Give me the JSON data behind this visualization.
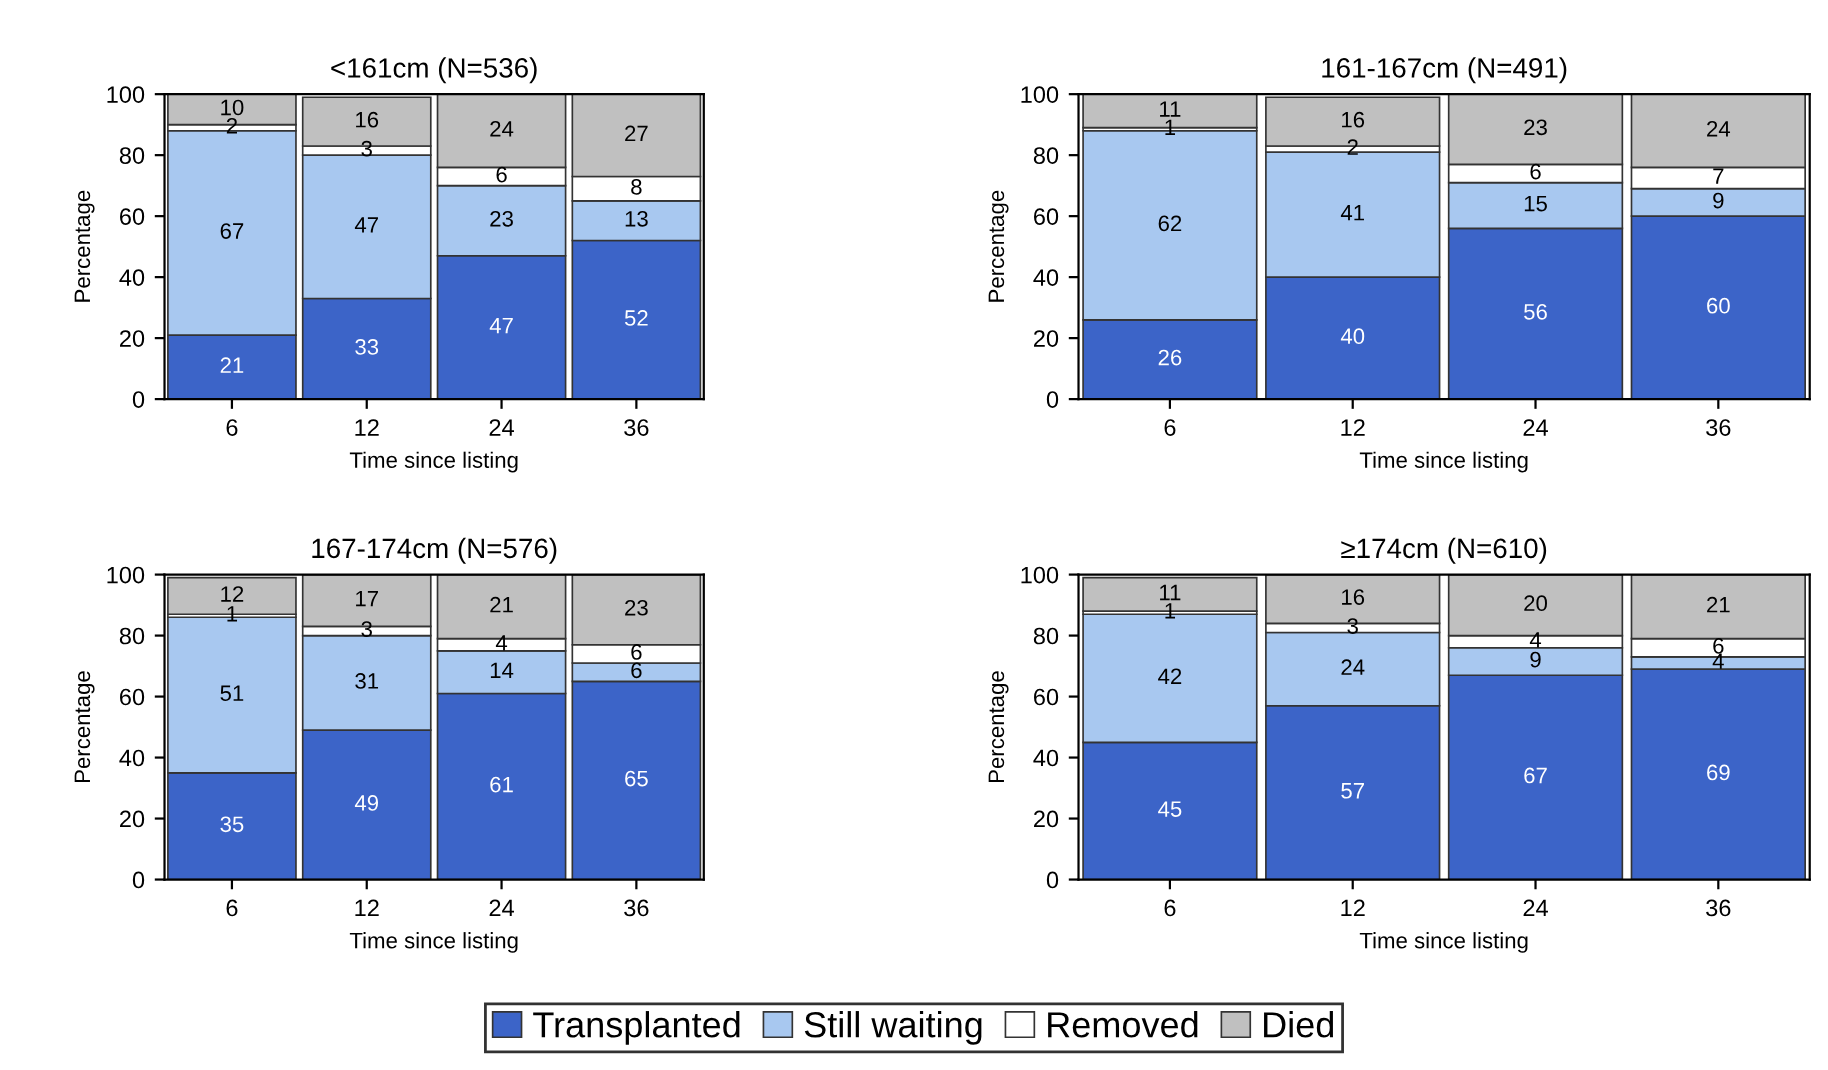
{
  "chart_data": [
    {
      "type": "bar",
      "title": "<161cm (N=536)",
      "xlabel": "Time since listing",
      "ylabel": "Percentage",
      "categories": [
        "6",
        "12",
        "24",
        "36"
      ],
      "stacked": true,
      "data_labels": true,
      "ylim": [
        0,
        100
      ],
      "yticks": [
        0,
        20,
        40,
        60,
        80,
        100
      ],
      "grid": false,
      "legend": "bottom",
      "series": [
        {
          "name": "Transplanted",
          "color": "#3c64c8",
          "values": [
            21,
            33,
            47,
            52
          ]
        },
        {
          "name": "Still waiting",
          "color": "#a8c8f0",
          "values": [
            67,
            47,
            23,
            13
          ]
        },
        {
          "name": "Removed",
          "color": "#ffffff",
          "values": [
            2,
            3,
            6,
            8
          ]
        },
        {
          "name": "Died",
          "color": "#c0c0c0",
          "values": [
            10,
            16,
            24,
            27
          ]
        }
      ]
    },
    {
      "type": "bar",
      "title": "161-167cm (N=491)",
      "xlabel": "Time since listing",
      "ylabel": "Percentage",
      "categories": [
        "6",
        "12",
        "24",
        "36"
      ],
      "stacked": true,
      "data_labels": true,
      "ylim": [
        0,
        100
      ],
      "yticks": [
        0,
        20,
        40,
        60,
        80,
        100
      ],
      "grid": false,
      "series": [
        {
          "color": "#3c64c8",
          "values": [
            26,
            40,
            56,
            60
          ]
        },
        {
          "color": "#a8c8f0",
          "values": [
            62,
            41,
            15,
            9
          ]
        },
        {
          "color": "#ffffff",
          "values": [
            1,
            2,
            6,
            7
          ]
        },
        {
          "color": "#c0c0c0",
          "values": [
            11,
            16,
            23,
            24
          ]
        }
      ]
    },
    {
      "type": "bar",
      "title": "167-174cm (N=576)",
      "xlabel": "Time since listing",
      "ylabel": "Percentage",
      "categories": [
        "6",
        "12",
        "24",
        "36"
      ],
      "stacked": true,
      "data_labels": true,
      "ylim": [
        0,
        100
      ],
      "yticks": [
        0,
        20,
        40,
        60,
        80,
        100
      ],
      "grid": false,
      "series": [
        {
          "color": "#3c64c8",
          "values": [
            35,
            49,
            61,
            65
          ]
        },
        {
          "color": "#a8c8f0",
          "values": [
            51,
            31,
            14,
            6
          ]
        },
        {
          "color": "#ffffff",
          "values": [
            1,
            3,
            4,
            6
          ]
        },
        {
          "color": "#c0c0c0",
          "values": [
            12,
            17,
            21,
            23
          ]
        }
      ]
    },
    {
      "type": "bar",
      "title": "≥174cm (N=610)",
      "xlabel": "Time since listing",
      "ylabel": "Percentage",
      "categories": [
        "6",
        "12",
        "24",
        "36"
      ],
      "stacked": true,
      "data_labels": true,
      "ylim": [
        0,
        100
      ],
      "yticks": [
        0,
        20,
        40,
        60,
        80,
        100
      ],
      "grid": false,
      "series": [
        {
          "color": "#3c64c8",
          "values": [
            45,
            57,
            67,
            69
          ]
        },
        {
          "color": "#a8c8f0",
          "values": [
            42,
            24,
            9,
            4
          ]
        },
        {
          "color": "#ffffff",
          "values": [
            1,
            3,
            4,
            6
          ]
        },
        {
          "color": "#c0c0c0",
          "values": [
            11,
            16,
            20,
            21
          ]
        }
      ]
    }
  ]
}
